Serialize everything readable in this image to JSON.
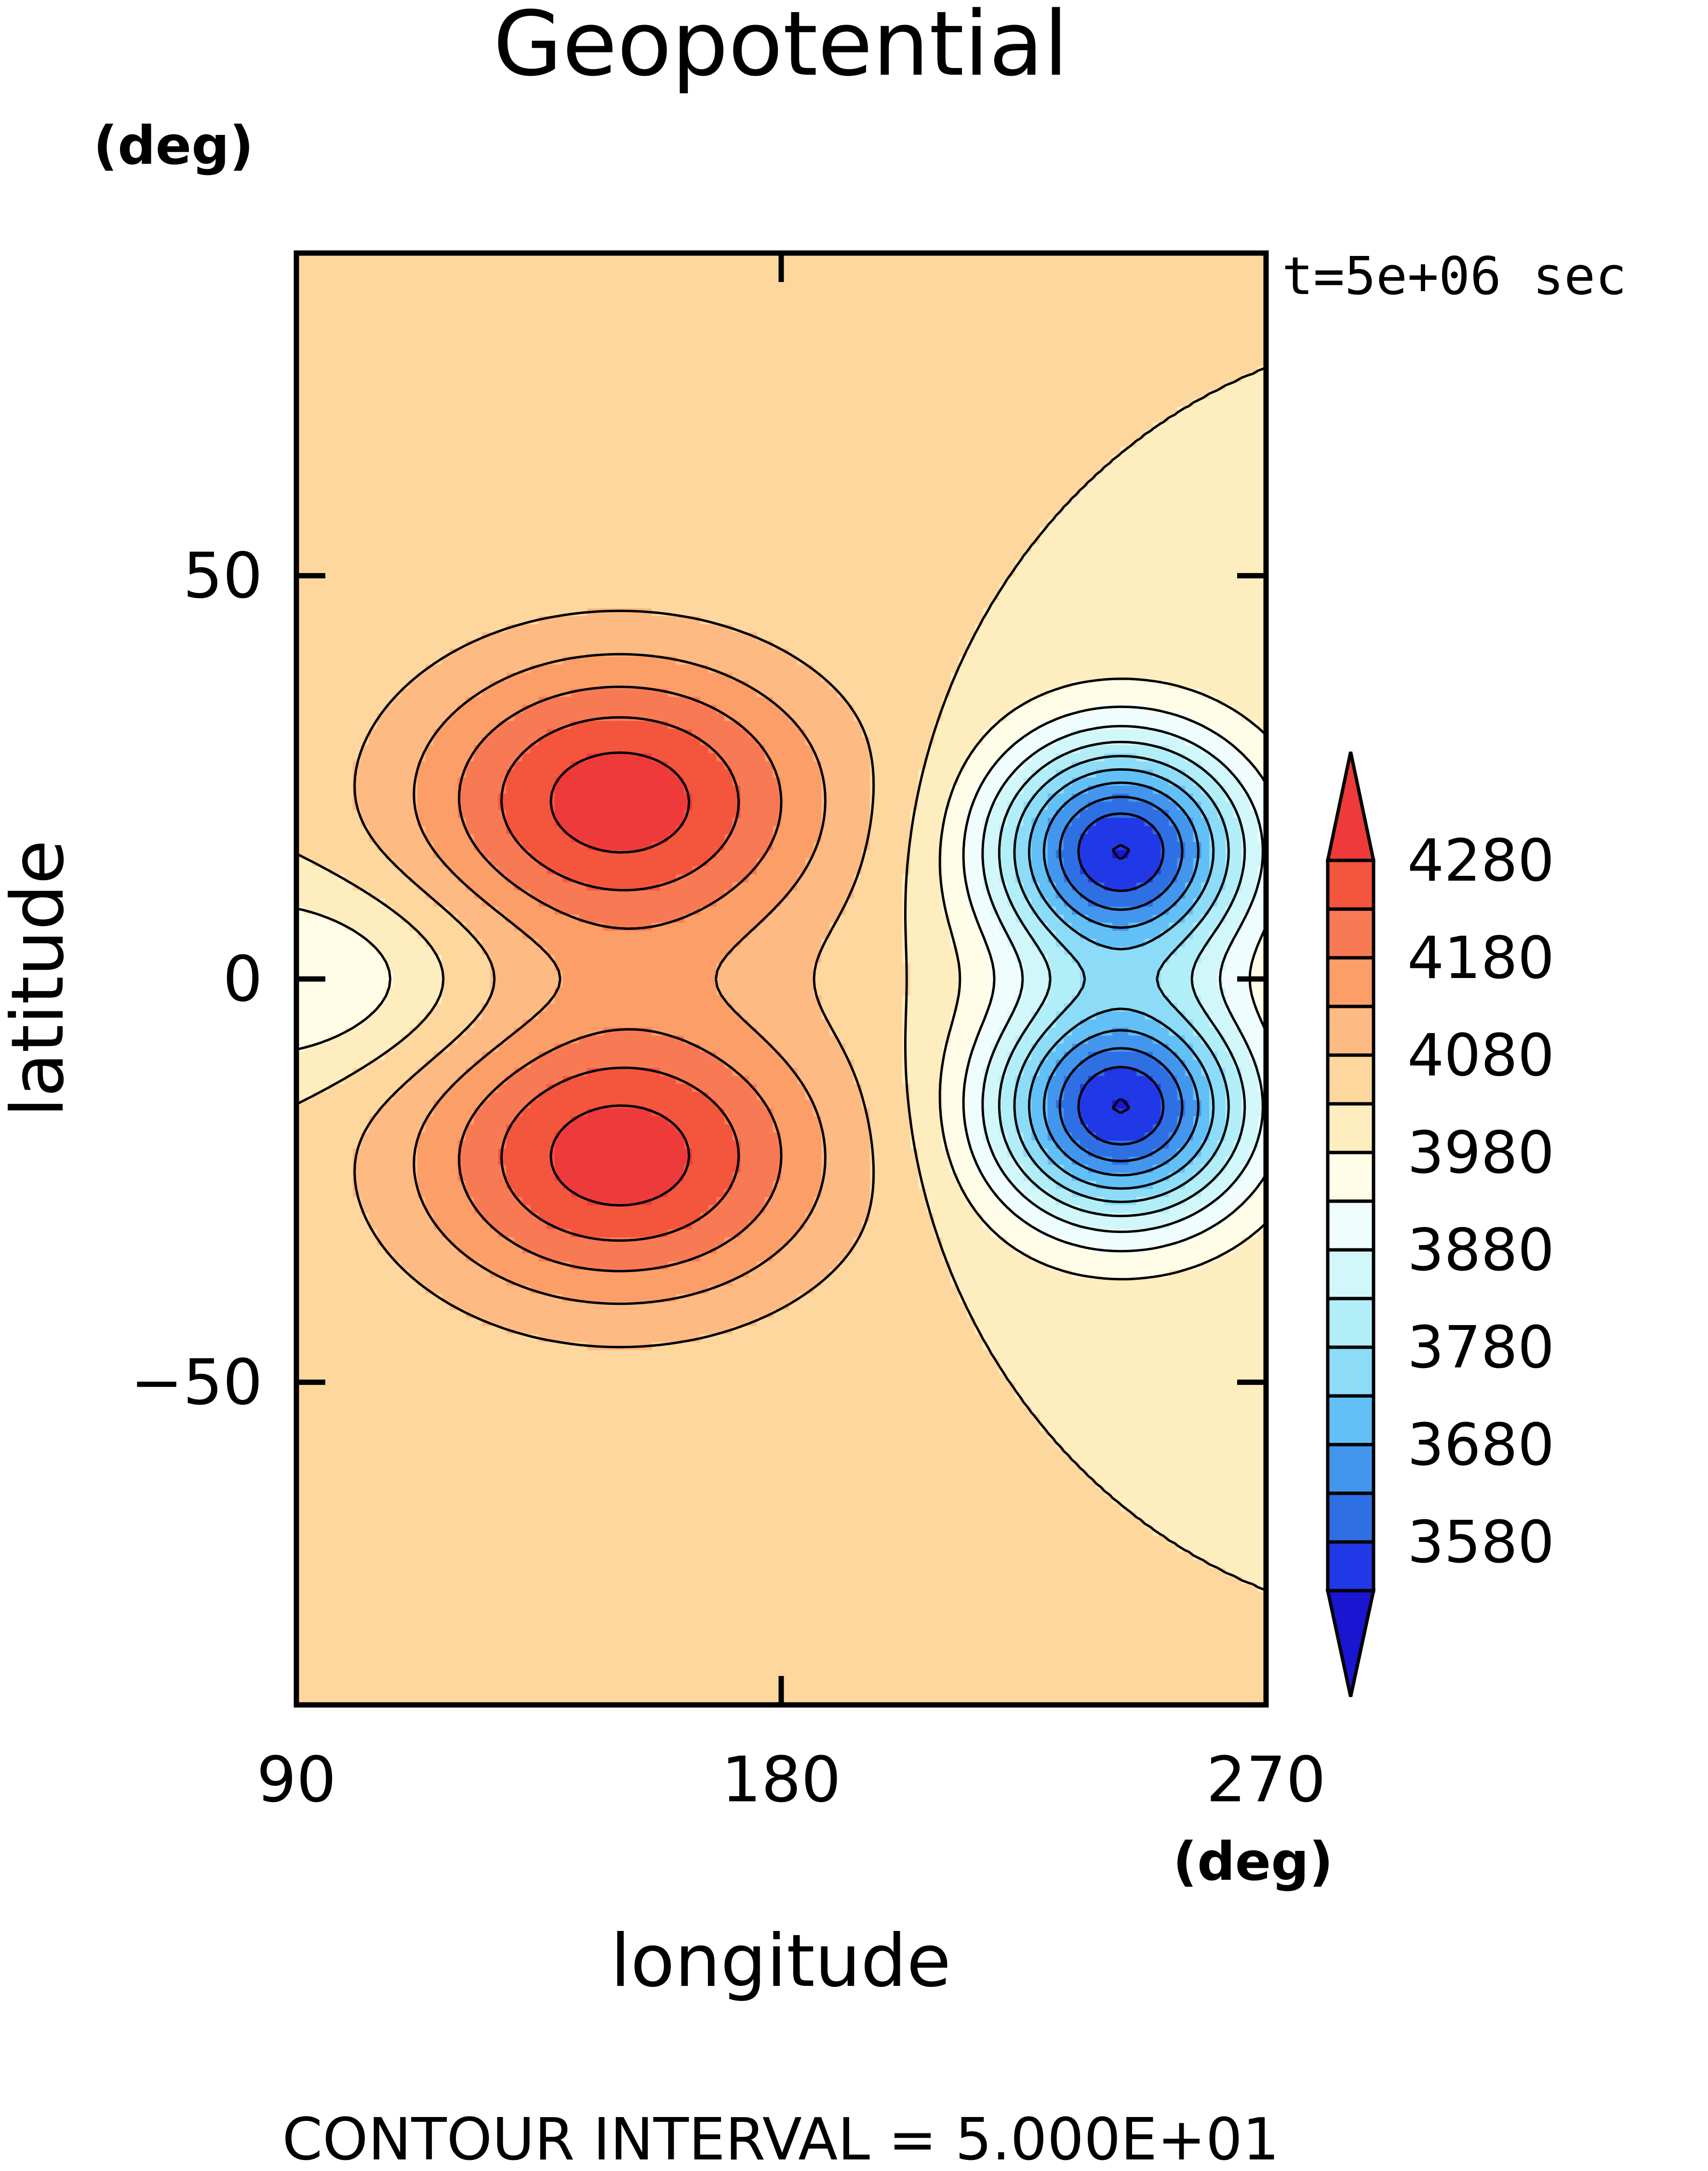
{
  "chart_data": {
    "type": "contour",
    "title": "Geopotential",
    "time_label": "t=5e+06 sec",
    "xlabel": "longitude",
    "ylabel": "latitude",
    "x_unit": "(deg)",
    "y_unit": "(deg)",
    "xlim": [
      90,
      270
    ],
    "ylim": [
      -90,
      90
    ],
    "xticks": [
      {
        "value": 90,
        "label": "90"
      },
      {
        "value": 180,
        "label": "180"
      },
      {
        "value": 270,
        "label": "270"
      }
    ],
    "yticks": [
      {
        "value": 50,
        "label": "50"
      },
      {
        "value": 0,
        "label": "0"
      },
      {
        "value": -50,
        "label": "−50"
      }
    ],
    "footer": "CONTOUR INTERVAL = 5.000E+01",
    "contour_interval": 50,
    "background_level": 4030,
    "features": [
      {
        "kind": "high",
        "lon": 150,
        "lat": 22,
        "peak": 4310
      },
      {
        "kind": "high",
        "lon": 150,
        "lat": -22,
        "peak": 4310
      },
      {
        "kind": "low",
        "lon": 243,
        "lat": 16,
        "min": 3530
      },
      {
        "kind": "low",
        "lon": 243,
        "lat": -16,
        "min": 3530
      },
      {
        "kind": "low",
        "lon": 90,
        "lat": 0,
        "min": 3920
      }
    ],
    "colorbar": {
      "labels": [
        "4280",
        "4180",
        "4080",
        "3980",
        "3880",
        "3780",
        "3680",
        "3580"
      ],
      "label_values": [
        4280,
        4180,
        4080,
        3980,
        3880,
        3780,
        3680,
        3580
      ],
      "levels": [
        4280,
        4230,
        4180,
        4130,
        4080,
        4030,
        3980,
        3930,
        3880,
        3830,
        3780,
        3730,
        3680,
        3630,
        3580,
        3530
      ],
      "colors_top_to_bottom": [
        "#ee3a3a",
        "#f4553d",
        "#f87a55",
        "#fb9e68",
        "#fdba83",
        "#fed79e",
        "#feedbe",
        "#fffce8",
        "#effdff",
        "#d2f7fb",
        "#b2eef8",
        "#8cdcf8",
        "#62c0f7",
        "#4296ee",
        "#2f6fe4",
        "#2138e6",
        "#1a15d0"
      ]
    }
  }
}
